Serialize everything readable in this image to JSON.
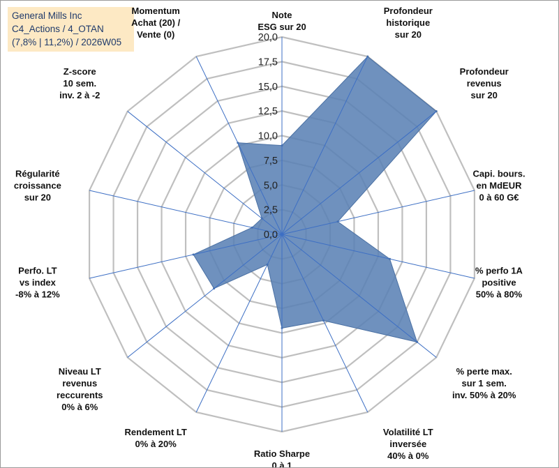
{
  "title_box": {
    "line1": "General Mills Inc",
    "line2": "C4_Actions / 4_OTAN",
    "line3": "(7,8% | 11,2%) / 2026W05"
  },
  "chart_data": {
    "type": "radar",
    "title": "",
    "range": [
      0,
      20
    ],
    "ticks": [
      "0,0",
      "2,5",
      "5,0",
      "7,5",
      "10,0",
      "12,5",
      "15,0",
      "17,5",
      "20,0"
    ],
    "axes": [
      {
        "label": [
          "Note",
          "ESG sur 20"
        ],
        "value": 9.0
      },
      {
        "label": [
          "Profondeur",
          "historique",
          "sur 20"
        ],
        "value": 20.0
      },
      {
        "label": [
          "Profondeur",
          "revenus",
          "sur 20"
        ],
        "value": 20.0
      },
      {
        "label": [
          "Capi. bours.",
          "en MdEUR",
          "0 à 60 G€"
        ],
        "value": 5.8
      },
      {
        "label": [
          "% perfo 1A",
          "positive",
          "50% à 80%"
        ],
        "value": 11.2
      },
      {
        "label": [
          "% perte max.",
          "sur 1 sem.",
          "inv. 50% à 20%"
        ],
        "value": 17.5
      },
      {
        "label": [
          "Volatilité LT",
          "inversée",
          "40% à 0%"
        ],
        "value": 9.7
      },
      {
        "label": [
          "Ratio Sharpe",
          "0 à 1"
        ],
        "value": 9.5
      },
      {
        "label": [
          "Rendement LT",
          "0% à 20%"
        ],
        "value": 3.4
      },
      {
        "label": [
          "Niveau LT",
          "revenus",
          "reccurents",
          "0% à 6%"
        ],
        "value": 8.8
      },
      {
        "label": [
          "Perfo. LT",
          "vs index",
          "-8% à 12%"
        ],
        "value": 9.2
      },
      {
        "label": [
          "Régularité",
          "croissance",
          "sur 20"
        ],
        "value": 3.1
      },
      {
        "label": [
          "Z-score",
          "10 sem.",
          "inv. 2 à -2"
        ],
        "value": 2.6
      },
      {
        "label": [
          "Momentum",
          "Achat (20) /",
          "Vente (0)"
        ],
        "value": 10.3
      }
    ],
    "colors": {
      "fill": "#5b82b5",
      "edge": "#4a70a3",
      "grid": "#bfbfbf",
      "spoke": "#3d6fc4"
    }
  }
}
